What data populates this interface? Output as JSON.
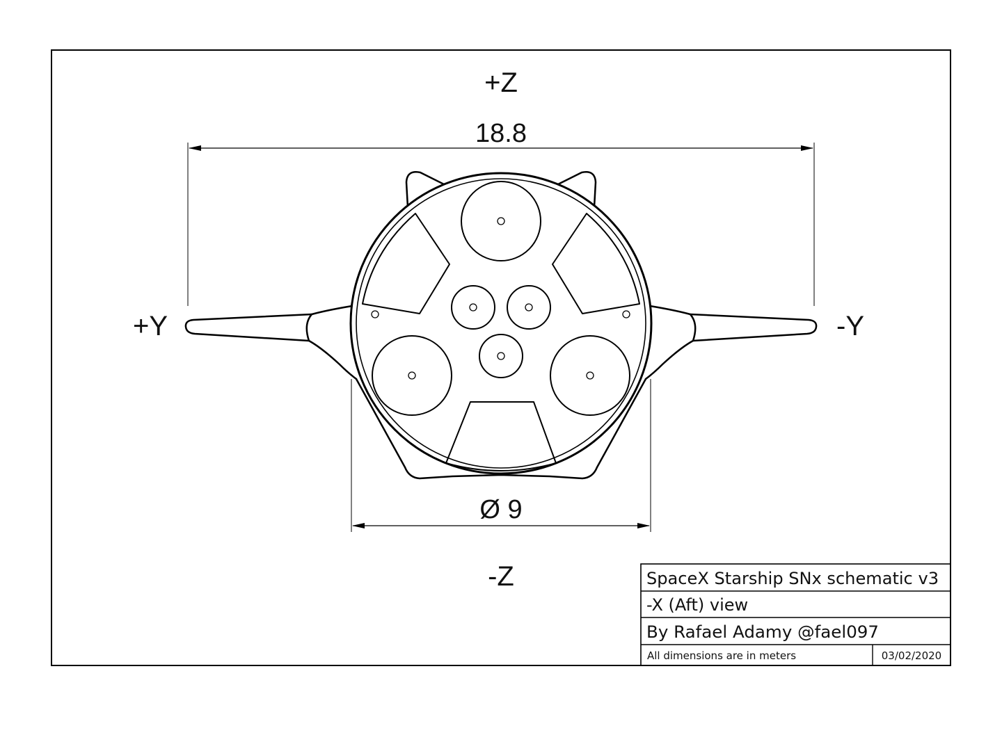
{
  "axes": {
    "top": "+Z",
    "bottom": "-Z",
    "left": "+Y",
    "right": "-Y"
  },
  "dimensions": {
    "span": "18.8",
    "diameter": "Ø 9"
  },
  "title_block": {
    "title": "SpaceX Starship SNx schematic v3",
    "view": "-X (Aft) view",
    "author": "By Rafael Adamy @fael097",
    "units_note": "All dimensions are in meters",
    "date": "03/02/2020"
  },
  "colors": {
    "line": "#000000",
    "background": "#ffffff"
  }
}
